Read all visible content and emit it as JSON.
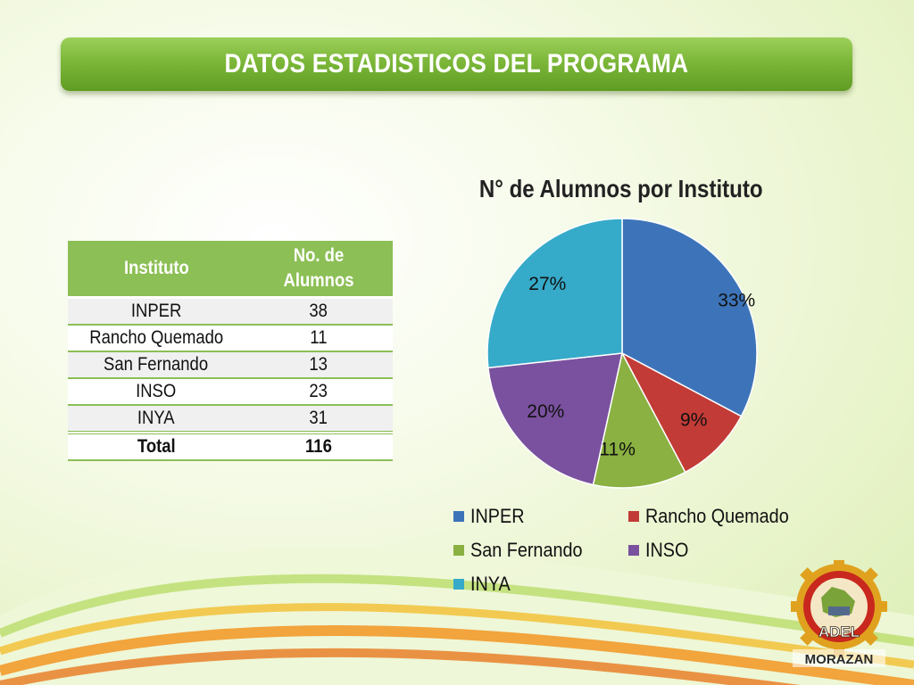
{
  "slide": {
    "title": "DATOS ESTADISTICOS DEL PROGRAMA"
  },
  "table": {
    "headers": [
      "Instituto",
      "No. de Alumnos"
    ],
    "rows": [
      {
        "instituto": "INPER",
        "alumnos": "38"
      },
      {
        "instituto": "Rancho Quemado",
        "alumnos": "11"
      },
      {
        "instituto": "San Fernando",
        "alumnos": "13"
      },
      {
        "instituto": "INSO",
        "alumnos": "23"
      },
      {
        "instituto": "INYA",
        "alumnos": "31"
      }
    ],
    "total_label": "Total",
    "total_value": "116"
  },
  "chart_data": {
    "type": "pie",
    "title": "N° de Alumnos por Instituto",
    "categories": [
      "INPER",
      "Rancho Quemado",
      "San Fernando",
      "INSO",
      "INYA"
    ],
    "values": [
      38,
      11,
      13,
      23,
      31
    ],
    "percent_labels": [
      "33%",
      "9%",
      "11%",
      "20%",
      "27%"
    ],
    "colors": [
      "#3d74b9",
      "#c23b36",
      "#8ab141",
      "#7a519e",
      "#36aac9"
    ],
    "legend_position": "bottom"
  },
  "logo": {
    "text_top": "ADEL",
    "text_bottom": "MORAZAN"
  }
}
